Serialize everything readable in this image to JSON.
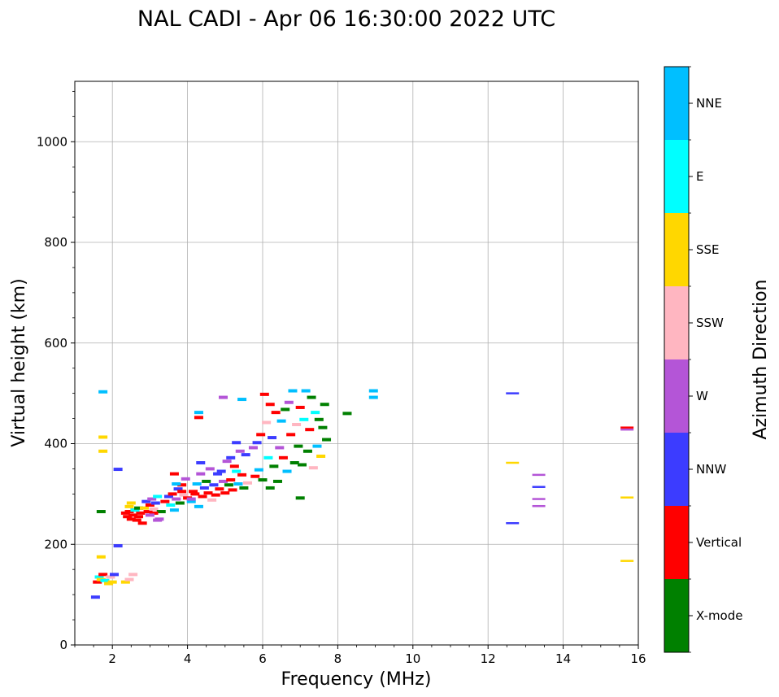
{
  "chart_data": {
    "type": "scatter",
    "title": "NAL CADI - Apr 06 16:30:00 2022 UTC",
    "xlabel": "Frequency (MHz)",
    "ylabel": "Virtual height (km)",
    "xlim": [
      1,
      16
    ],
    "ylim": [
      0,
      1120
    ],
    "xticks": [
      2,
      4,
      6,
      8,
      10,
      12,
      14,
      16
    ],
    "yticks": [
      0,
      200,
      400,
      600,
      800,
      1000
    ],
    "grid": true,
    "colorbar": {
      "label": "Azimuth Direction",
      "categories": [
        {
          "name": "X-mode",
          "color": "#008000"
        },
        {
          "name": "Vertical",
          "color": "#ff0000"
        },
        {
          "name": "NNW",
          "color": "#3c3cff"
        },
        {
          "name": "W",
          "color": "#b455d7"
        },
        {
          "name": "SSW",
          "color": "#ffb6c1"
        },
        {
          "name": "SSE",
          "color": "#ffd700"
        },
        {
          "name": "E",
          "color": "#00ffff"
        },
        {
          "name": "NNE",
          "color": "#00bfff"
        }
      ]
    },
    "points": [
      [
        1.55,
        95,
        "NNW"
      ],
      [
        1.6,
        125,
        "Vertical"
      ],
      [
        1.65,
        135,
        "E"
      ],
      [
        1.7,
        130,
        "SSE"
      ],
      [
        1.75,
        140,
        "Vertical"
      ],
      [
        1.8,
        128,
        "E"
      ],
      [
        1.9,
        122,
        "SSE"
      ],
      [
        1.95,
        135,
        "SSW"
      ],
      [
        2.0,
        125,
        "SSE"
      ],
      [
        2.05,
        140,
        "NNW"
      ],
      [
        2.35,
        125,
        "SSE"
      ],
      [
        2.45,
        130,
        "SSW"
      ],
      [
        2.55,
        140,
        "SSW"
      ],
      [
        1.7,
        175,
        "SSE"
      ],
      [
        1.7,
        265,
        "Green"
      ],
      [
        1.75,
        385,
        "SSE"
      ],
      [
        1.75,
        413,
        "SSE"
      ],
      [
        1.75,
        503,
        "NNE"
      ],
      [
        2.15,
        197,
        "NNW"
      ],
      [
        2.15,
        349,
        "NNW"
      ],
      [
        2.35,
        262,
        "Vertical"
      ],
      [
        2.4,
        255,
        "Vertical"
      ],
      [
        2.45,
        265,
        "Vertical"
      ],
      [
        2.5,
        250,
        "Vertical"
      ],
      [
        2.55,
        258,
        "Vertical"
      ],
      [
        2.6,
        268,
        "Vertical"
      ],
      [
        2.65,
        248,
        "Vertical"
      ],
      [
        2.7,
        255,
        "Vertical"
      ],
      [
        2.75,
        262,
        "Vertical"
      ],
      [
        2.8,
        242,
        "Vertical"
      ],
      [
        2.45,
        275,
        "SSE"
      ],
      [
        2.5,
        282,
        "SSE"
      ],
      [
        2.6,
        268,
        "E"
      ],
      [
        2.7,
        272,
        "X-mode"
      ],
      [
        2.85,
        272,
        "SSE"
      ],
      [
        2.9,
        285,
        "NNW"
      ],
      [
        2.95,
        265,
        "Vertical"
      ],
      [
        3.0,
        278,
        "Vertical"
      ],
      [
        3.05,
        290,
        "W"
      ],
      [
        3.1,
        270,
        "SSW"
      ],
      [
        3.15,
        282,
        "NNW"
      ],
      [
        3.2,
        295,
        "E"
      ],
      [
        3.25,
        250,
        "W"
      ],
      [
        3.3,
        265,
        "X-mode"
      ],
      [
        3.1,
        262,
        "Vertical"
      ],
      [
        3.2,
        248,
        "W"
      ],
      [
        3.0,
        258,
        "W"
      ],
      [
        3.4,
        285,
        "Vertical"
      ],
      [
        3.5,
        295,
        "NNW"
      ],
      [
        3.55,
        278,
        "E"
      ],
      [
        3.6,
        300,
        "Vertical"
      ],
      [
        3.65,
        268,
        "NNE"
      ],
      [
        3.7,
        290,
        "W"
      ],
      [
        3.75,
        310,
        "NNW"
      ],
      [
        3.8,
        282,
        "X-mode"
      ],
      [
        3.85,
        318,
        "Vertical"
      ],
      [
        3.9,
        298,
        "SSW"
      ],
      [
        3.95,
        330,
        "W"
      ],
      [
        4.0,
        292,
        "Vertical"
      ],
      [
        3.7,
        320,
        "NNE"
      ],
      [
        3.65,
        340,
        "Vertical"
      ],
      [
        3.85,
        305,
        "Vertical"
      ],
      [
        4.1,
        285,
        "NNE"
      ],
      [
        4.2,
        300,
        "Vertical"
      ],
      [
        4.25,
        320,
        "NNE"
      ],
      [
        4.3,
        275,
        "NNE"
      ],
      [
        4.35,
        340,
        "W"
      ],
      [
        4.4,
        295,
        "Vertical"
      ],
      [
        4.45,
        312,
        "NNW"
      ],
      [
        4.5,
        325,
        "X-mode"
      ],
      [
        4.55,
        302,
        "Vertical"
      ],
      [
        4.6,
        350,
        "W"
      ],
      [
        4.65,
        288,
        "SSW"
      ],
      [
        4.7,
        318,
        "NNW"
      ],
      [
        4.75,
        298,
        "Vertical"
      ],
      [
        4.8,
        340,
        "NNW"
      ],
      [
        4.85,
        310,
        "Vertical"
      ],
      [
        4.9,
        345,
        "NNW"
      ],
      [
        4.95,
        325,
        "W"
      ],
      [
        5.0,
        302,
        "Vertical"
      ],
      [
        4.3,
        462,
        "NNE"
      ],
      [
        4.3,
        452,
        "Vertical"
      ],
      [
        4.35,
        362,
        "NNW"
      ],
      [
        4.15,
        305,
        "Vertical"
      ],
      [
        4.1,
        290,
        "W"
      ],
      [
        5.05,
        365,
        "W"
      ],
      [
        5.1,
        318,
        "X-mode"
      ],
      [
        5.15,
        372,
        "NNW"
      ],
      [
        5.2,
        308,
        "Vertical"
      ],
      [
        5.25,
        355,
        "Vertical"
      ],
      [
        5.3,
        402,
        "NNW"
      ],
      [
        5.35,
        320,
        "NNE"
      ],
      [
        5.4,
        385,
        "W"
      ],
      [
        5.45,
        338,
        "Vertical"
      ],
      [
        5.5,
        312,
        "X-mode"
      ],
      [
        5.55,
        378,
        "NNW"
      ],
      [
        5.6,
        322,
        "SSW"
      ],
      [
        5.45,
        488,
        "NNE"
      ],
      [
        5.3,
        345,
        "E"
      ],
      [
        5.15,
        328,
        "Vertical"
      ],
      [
        4.95,
        492,
        "W"
      ],
      [
        5.75,
        392,
        "W"
      ],
      [
        5.8,
        335,
        "Vertical"
      ],
      [
        5.85,
        402,
        "NNW"
      ],
      [
        5.9,
        348,
        "NNE"
      ],
      [
        5.95,
        418,
        "Vertical"
      ],
      [
        6.0,
        328,
        "X-mode"
      ],
      [
        6.05,
        498,
        "Vertical"
      ],
      [
        6.1,
        442,
        "SSW"
      ],
      [
        6.15,
        372,
        "E"
      ],
      [
        6.2,
        478,
        "Vertical"
      ],
      [
        6.25,
        412,
        "NNW"
      ],
      [
        6.3,
        355,
        "X-mode"
      ],
      [
        6.35,
        462,
        "Vertical"
      ],
      [
        6.4,
        325,
        "X-mode"
      ],
      [
        6.45,
        392,
        "W"
      ],
      [
        6.5,
        445,
        "NNE"
      ],
      [
        6.55,
        372,
        "Vertical"
      ],
      [
        6.6,
        468,
        "X-mode"
      ],
      [
        6.65,
        345,
        "NNE"
      ],
      [
        6.7,
        482,
        "W"
      ],
      [
        6.75,
        418,
        "Vertical"
      ],
      [
        6.8,
        505,
        "NNE"
      ],
      [
        6.85,
        362,
        "X-mode"
      ],
      [
        6.9,
        438,
        "SSW"
      ],
      [
        6.95,
        395,
        "X-mode"
      ],
      [
        7.0,
        472,
        "Vertical"
      ],
      [
        7.05,
        358,
        "X-mode"
      ],
      [
        7.1,
        448,
        "E"
      ],
      [
        7.15,
        505,
        "NNE"
      ],
      [
        7.2,
        385,
        "X-mode"
      ],
      [
        7.25,
        428,
        "Vertical"
      ],
      [
        7.3,
        492,
        "X-mode"
      ],
      [
        7.35,
        352,
        "SSW"
      ],
      [
        7.4,
        462,
        "E"
      ],
      [
        7.45,
        395,
        "NNE"
      ],
      [
        7.5,
        448,
        "X-mode"
      ],
      [
        7.55,
        375,
        "SSE"
      ],
      [
        7.6,
        432,
        "X-mode"
      ],
      [
        7.65,
        478,
        "X-mode"
      ],
      [
        7.0,
        292,
        "X-mode"
      ],
      [
        6.2,
        312,
        "X-mode"
      ],
      [
        7.7,
        408,
        "X-mode"
      ],
      [
        8.25,
        460,
        "X-mode"
      ],
      [
        8.95,
        492,
        "NNE"
      ],
      [
        8.95,
        505,
        "NNE"
      ],
      [
        12.65,
        500,
        "NNW"
      ],
      [
        12.65,
        362,
        "SSE"
      ],
      [
        12.65,
        242,
        "NNW"
      ],
      [
        13.35,
        338,
        "W"
      ],
      [
        13.35,
        314,
        "NNW"
      ],
      [
        13.35,
        290,
        "W"
      ],
      [
        13.35,
        276,
        "W"
      ],
      [
        15.7,
        432,
        "Vertical"
      ],
      [
        15.7,
        428,
        "W"
      ],
      [
        15.7,
        293,
        "SSE"
      ],
      [
        15.7,
        167,
        "SSE"
      ]
    ]
  }
}
